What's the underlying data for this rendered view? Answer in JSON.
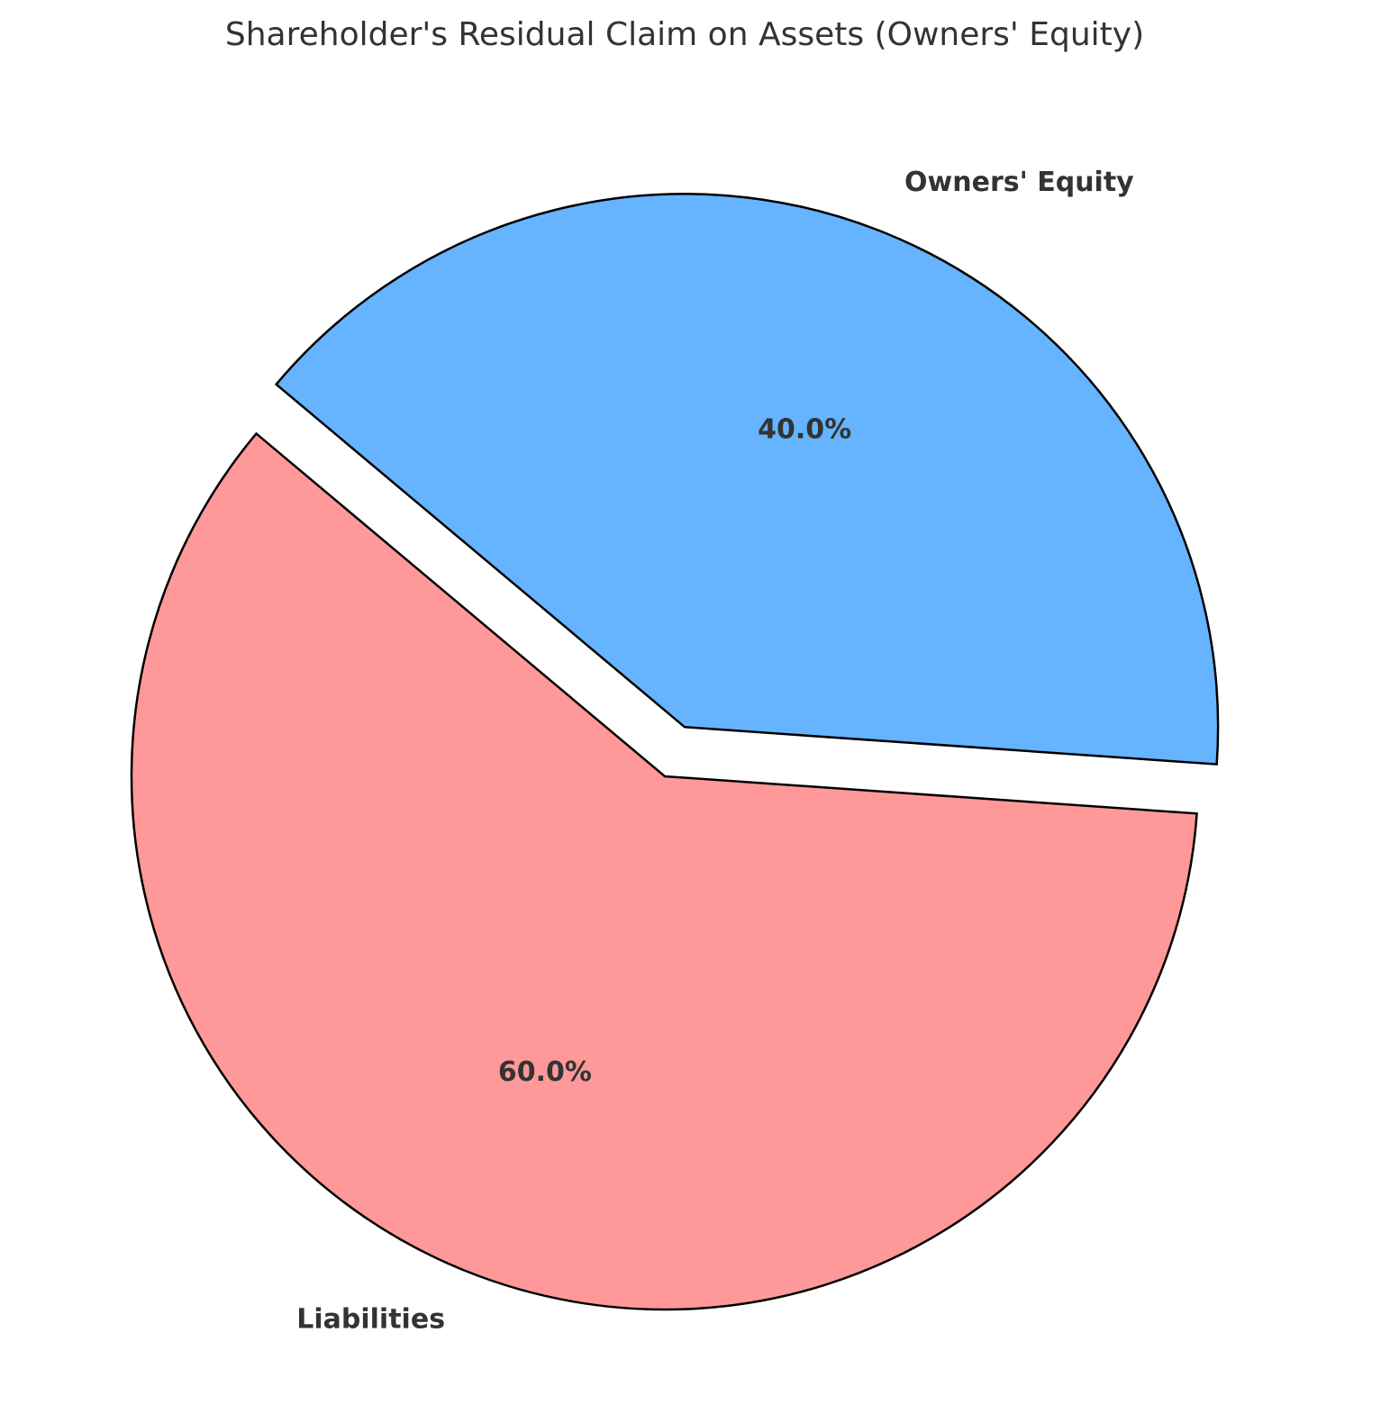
{
  "chart_data": {
    "type": "pie",
    "title": "Shareholder's Residual Claim on Assets (Owners' Equity)",
    "slices": [
      {
        "label": "Liabilities",
        "value": 60.0,
        "pct_label": "60.0%",
        "color": "#ff9999",
        "exploded": false
      },
      {
        "label": "Owners' Equity",
        "value": 40.0,
        "pct_label": "40.0%",
        "color": "#66b3ff",
        "exploded": true
      }
    ],
    "start_angle_deg": 140,
    "direction": "counterclockwise",
    "legend": "none"
  }
}
